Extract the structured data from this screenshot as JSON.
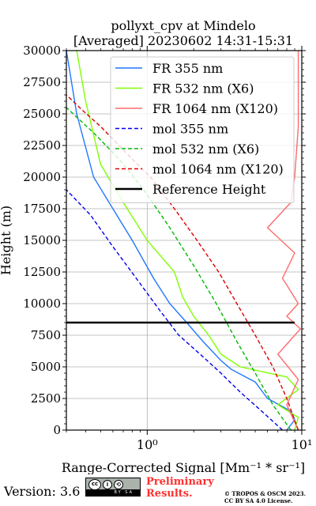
{
  "chart_data": {
    "type": "line",
    "title": "pollyxt_cpv at Mindelo",
    "subtitle": "[Averaged] 20230602 14:31-15:31",
    "xlabel": "Range-Corrected Signal [Mm⁻¹ * sr⁻¹]",
    "ylabel": "Height (m)",
    "xscale": "log",
    "xlim": [
      0.3,
      10
    ],
    "ylim": [
      0,
      30000
    ],
    "x_ticks": [
      "10⁰",
      "10¹"
    ],
    "y_ticks": [
      "0",
      "2500",
      "5000",
      "7500",
      "10000",
      "12500",
      "15000",
      "17500",
      "20000",
      "22500",
      "25000",
      "27500",
      "30000"
    ],
    "grid": true,
    "legend_position": "top-right",
    "series": [
      {
        "name": "FR 355 nm",
        "color": "#1f77ff",
        "style": "solid",
        "x": [
          8,
          9,
          8.5,
          6,
          5,
          3.5,
          3,
          2.3,
          1.8,
          1.4,
          1.1,
          0.8,
          0.6,
          0.45,
          0.35,
          0.3
        ],
        "y": [
          0,
          800,
          1500,
          2500,
          3800,
          4800,
          5500,
          7000,
          8500,
          10000,
          12000,
          15000,
          17500,
          20000,
          25000,
          30000
        ]
      },
      {
        "name": "FR 532 nm (X6)",
        "color": "#7fff00",
        "style": "solid",
        "x": [
          9,
          9.5,
          7,
          9.5,
          8,
          4,
          3,
          2.5,
          2.0,
          1.7,
          1.5,
          1.0,
          0.7,
          0.5,
          0.4,
          0.35
        ],
        "y": [
          0,
          1000,
          2000,
          3200,
          4200,
          5000,
          6000,
          7500,
          9000,
          10500,
          12500,
          15000,
          18000,
          21000,
          26000,
          30000
        ]
      },
      {
        "name": "FR 1064 nm (X120)",
        "color": "#ff6b6b",
        "style": "solid",
        "x": [
          9.5,
          8,
          9.5,
          7,
          9.8,
          8,
          9.5,
          7.5,
          9,
          6,
          8.5,
          9,
          9.5,
          9.5,
          9.5
        ],
        "y": [
          0,
          2000,
          4000,
          6000,
          8000,
          9000,
          10000,
          12000,
          14000,
          16000,
          18000,
          20000,
          24000,
          28000,
          30000
        ]
      },
      {
        "name": "mol 355 nm",
        "color": "#0000ee",
        "style": "dashed",
        "x": [
          7.5,
          5.5,
          4.0,
          3.0,
          2.2,
          1.6,
          1.2,
          0.85,
          0.6,
          0.43,
          0.3
        ],
        "y": [
          0,
          1500,
          3000,
          4500,
          6000,
          7500,
          9500,
          12000,
          14500,
          17000,
          19000
        ]
      },
      {
        "name": "mol 532 nm (X6)",
        "color": "#00b800",
        "style": "dashed",
        "x": [
          8.5,
          6.5,
          5.0,
          3.8,
          2.8,
          2.0,
          1.4,
          0.95,
          0.65,
          0.45,
          0.3
        ],
        "y": [
          0,
          2000,
          4500,
          7000,
          10000,
          13000,
          16000,
          19000,
          21500,
          23500,
          25500
        ]
      },
      {
        "name": "mol 1064 nm (X120)",
        "color": "#e00000",
        "style": "dashed",
        "x": [
          9.5,
          8,
          6.5,
          5.0,
          3.8,
          2.9,
          2.1,
          1.5,
          1.05,
          0.72,
          0.5,
          0.38,
          0.3
        ],
        "y": [
          0,
          2500,
          5000,
          7500,
          10000,
          12500,
          15000,
          17500,
          20000,
          22000,
          24000,
          25300,
          26500
        ]
      },
      {
        "name": "Reference Height",
        "color": "#000000",
        "style": "solid",
        "x": [
          0.3,
          9
        ],
        "y": [
          8500,
          8500
        ]
      }
    ]
  },
  "footer": {
    "version": "Version: 3.6",
    "cc_label": "BY SA",
    "preliminary": "Preliminary Results.",
    "copyright": "© TROPOS & OSCM 2023. CC BY SA 4.0 License."
  }
}
